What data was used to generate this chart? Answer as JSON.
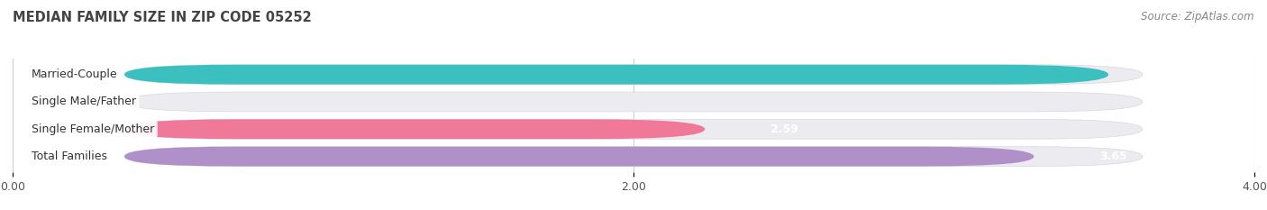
{
  "title": "MEDIAN FAMILY SIZE IN ZIP CODE 05252",
  "source": "Source: ZipAtlas.com",
  "categories": [
    "Married-Couple",
    "Single Male/Father",
    "Single Female/Mother",
    "Total Families"
  ],
  "values": [
    3.89,
    0.0,
    2.59,
    3.65
  ],
  "bar_colors": [
    "#3bbfbf",
    "#a0b8e0",
    "#f07898",
    "#b090c8"
  ],
  "bar_bg_color": "#ebebf0",
  "bar_border_color": "#d8d8e0",
  "xlim": [
    0,
    4.0
  ],
  "xticks": [
    0.0,
    2.0,
    4.0
  ],
  "figsize": [
    14.06,
    2.33
  ],
  "dpi": 100,
  "background_color": "#ffffff",
  "label_fontsize": 9,
  "value_fontsize": 9,
  "title_fontsize": 10.5,
  "source_fontsize": 8.5
}
